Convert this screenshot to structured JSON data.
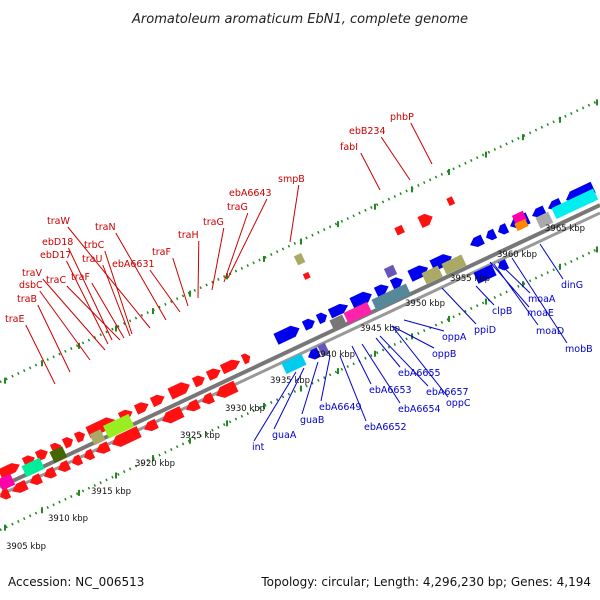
{
  "title": "Aromatoleum aromaticum EbN1, complete genome",
  "accession": "Accession: NC_006513",
  "summary": "Topology: circular; Length: 4,296,230 bp; Genes: 4,194",
  "colors": {
    "upper_label": "#cc0000",
    "lower_label": "#0000cc",
    "backbone": "#888888",
    "tick": "#228822"
  },
  "kbp_ticks": [
    "3905 kbp",
    "3910 kbp",
    "3915 kbp",
    "3920 kbp",
    "3925 kbp",
    "3930 kbp",
    "3935 kbp",
    "3940 kbp",
    "3945 kbp",
    "3950 kbp",
    "3955 kbp",
    "3960 kbp",
    "3965 kbp"
  ],
  "upper_genes": [
    "traE",
    "traB",
    "dsbC",
    "traV",
    "ebD17",
    "ebD18",
    "traC",
    "traF",
    "traU",
    "trbC",
    "traW",
    "traN",
    "ebA6631",
    "traF",
    "traH",
    "traG",
    "traG",
    "ebA6643",
    "smpB",
    "fabI",
    "ebB234",
    "phbP"
  ],
  "lower_genes": [
    "int",
    "guaA",
    "guaB",
    "ebA6649",
    "ebA6652",
    "ebA6653",
    "ebA6654",
    "ebA6655",
    "oppB",
    "oppA",
    "ebA6657",
    "oppC",
    "ppiD",
    "clpB",
    "moaE",
    "moaA",
    "moaD",
    "dinG",
    "mobB"
  ]
}
